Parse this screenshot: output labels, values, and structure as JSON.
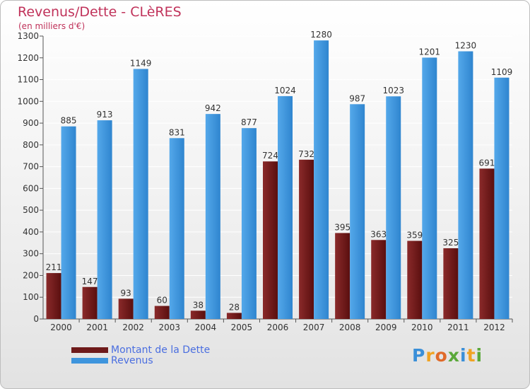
{
  "chart_data": {
    "type": "bar",
    "title": "Revenus/Dette - CLèRES",
    "subtitle": "(en milliers d'€)",
    "categories": [
      "2000",
      "2001",
      "2002",
      "2003",
      "2004",
      "2005",
      "2006",
      "2007",
      "2008",
      "2009",
      "2010",
      "2011",
      "2012"
    ],
    "series": [
      {
        "name": "Montant de la Dette",
        "color": "#6e1a1a",
        "values": [
          211,
          147,
          93,
          60,
          38,
          28,
          724,
          732,
          395,
          363,
          359,
          325,
          691
        ]
      },
      {
        "name": "Revenus",
        "color": "#3e95dd",
        "values": [
          885,
          913,
          1149,
          831,
          942,
          877,
          1024,
          1280,
          987,
          1023,
          1201,
          1230,
          1109
        ]
      }
    ],
    "ylim": [
      0,
      1300
    ],
    "yticks": [
      0,
      100,
      200,
      300,
      400,
      500,
      600,
      700,
      800,
      900,
      1000,
      1100,
      1200,
      1300
    ],
    "grid": true,
    "legend_position": "bottom-left"
  },
  "brand": {
    "letters": [
      "P",
      "r",
      "o",
      "x",
      "i",
      "t",
      "i"
    ],
    "colors": [
      "#3a8fd8",
      "#f0a323",
      "#e06a2a",
      "#5aa83a",
      "#3a8fd8",
      "#f0a323",
      "#5aa83a"
    ]
  }
}
